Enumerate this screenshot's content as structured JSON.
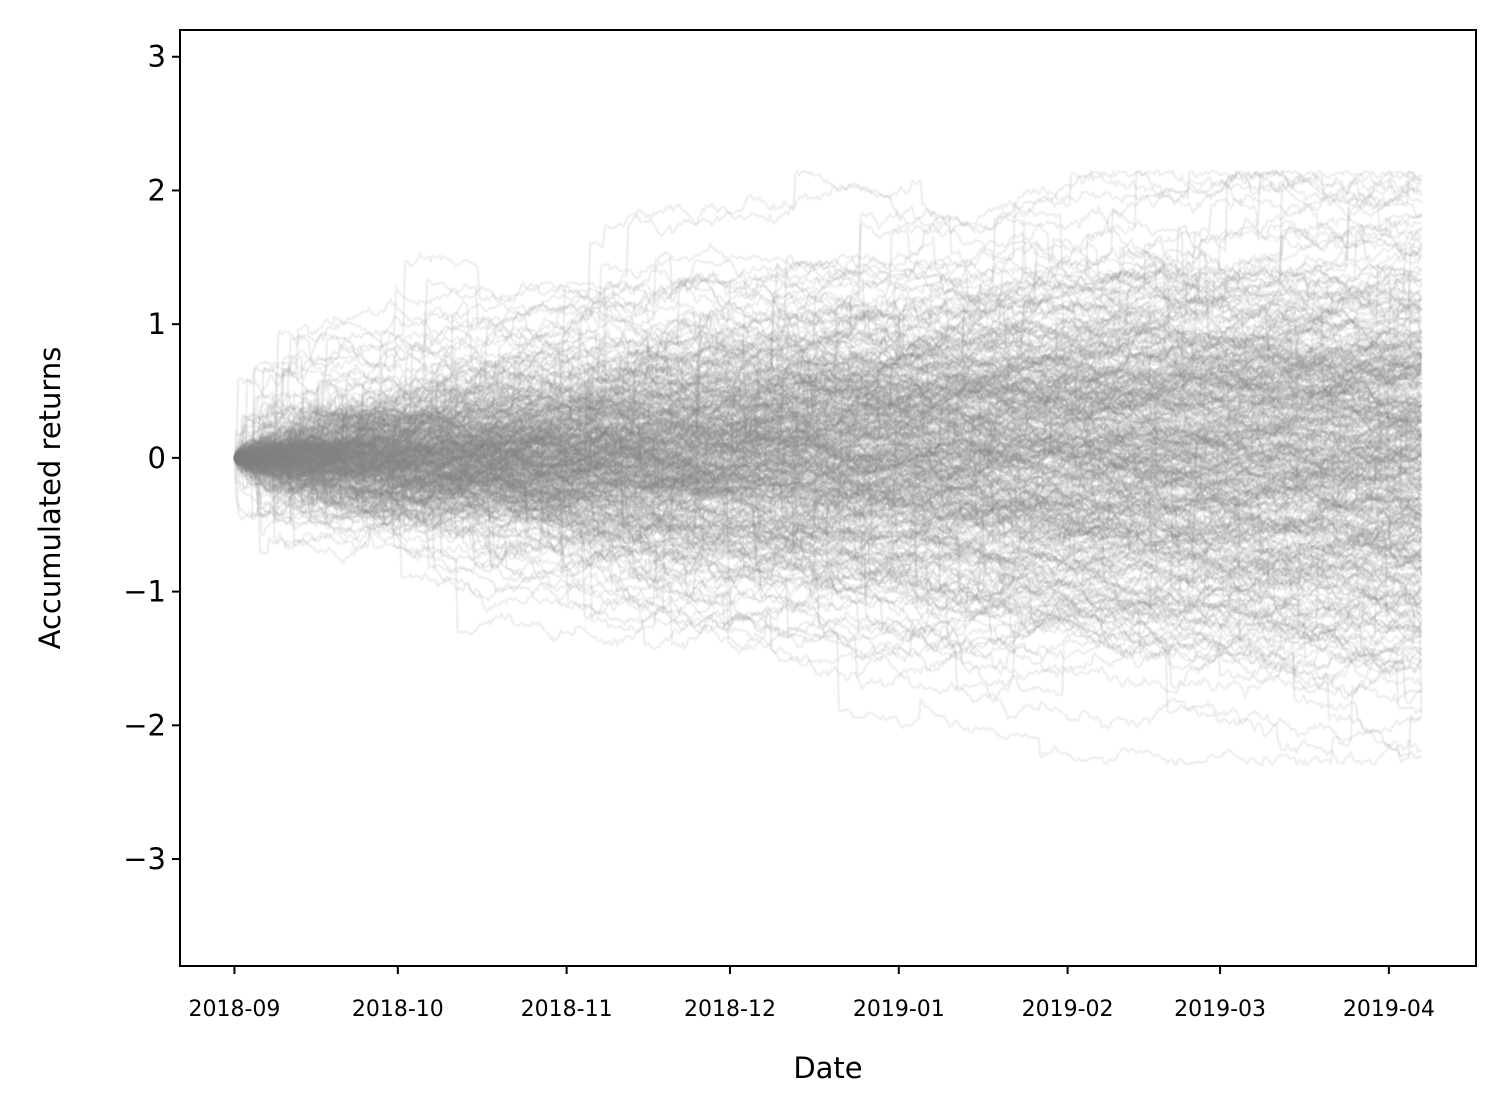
{
  "chart_data": {
    "type": "line",
    "title": "",
    "xlabel": "Date",
    "ylabel": "Accumulated returns",
    "x_range": [
      "2018-08-22",
      "2019-04-17"
    ],
    "ylim": [
      -3.8,
      3.2
    ],
    "x_ticks": [
      {
        "date": "2018-09-01",
        "label": "2018-09"
      },
      {
        "date": "2018-10-01",
        "label": "2018-10"
      },
      {
        "date": "2018-11-01",
        "label": "2018-11"
      },
      {
        "date": "2018-12-01",
        "label": "2018-12"
      },
      {
        "date": "2019-01-01",
        "label": "2019-01"
      },
      {
        "date": "2019-02-01",
        "label": "2019-02"
      },
      {
        "date": "2019-03-01",
        "label": "2019-03"
      },
      {
        "date": "2019-04-01",
        "label": "2019-04"
      }
    ],
    "y_ticks": [
      {
        "value": 3,
        "label": "3"
      },
      {
        "value": 2,
        "label": "2"
      },
      {
        "value": 1,
        "label": "1"
      },
      {
        "value": 0,
        "label": "0"
      },
      {
        "value": -1,
        "label": "−1"
      },
      {
        "value": -2,
        "label": "−2"
      },
      {
        "value": -3,
        "label": "−3"
      }
    ],
    "grid": false,
    "series_color": "#808080",
    "series_opacity": 0.12,
    "series_count": 400,
    "series_date_start": "2018-09-01",
    "series_date_end": "2019-04-07",
    "series_end_value_envelope": {
      "max": 2.15,
      "min": -2.3
    },
    "series_description": "Many simulated accumulated-return paths starting at 0 on 2018-09-01 and ending 2019-04-07, spread widening over time"
  }
}
